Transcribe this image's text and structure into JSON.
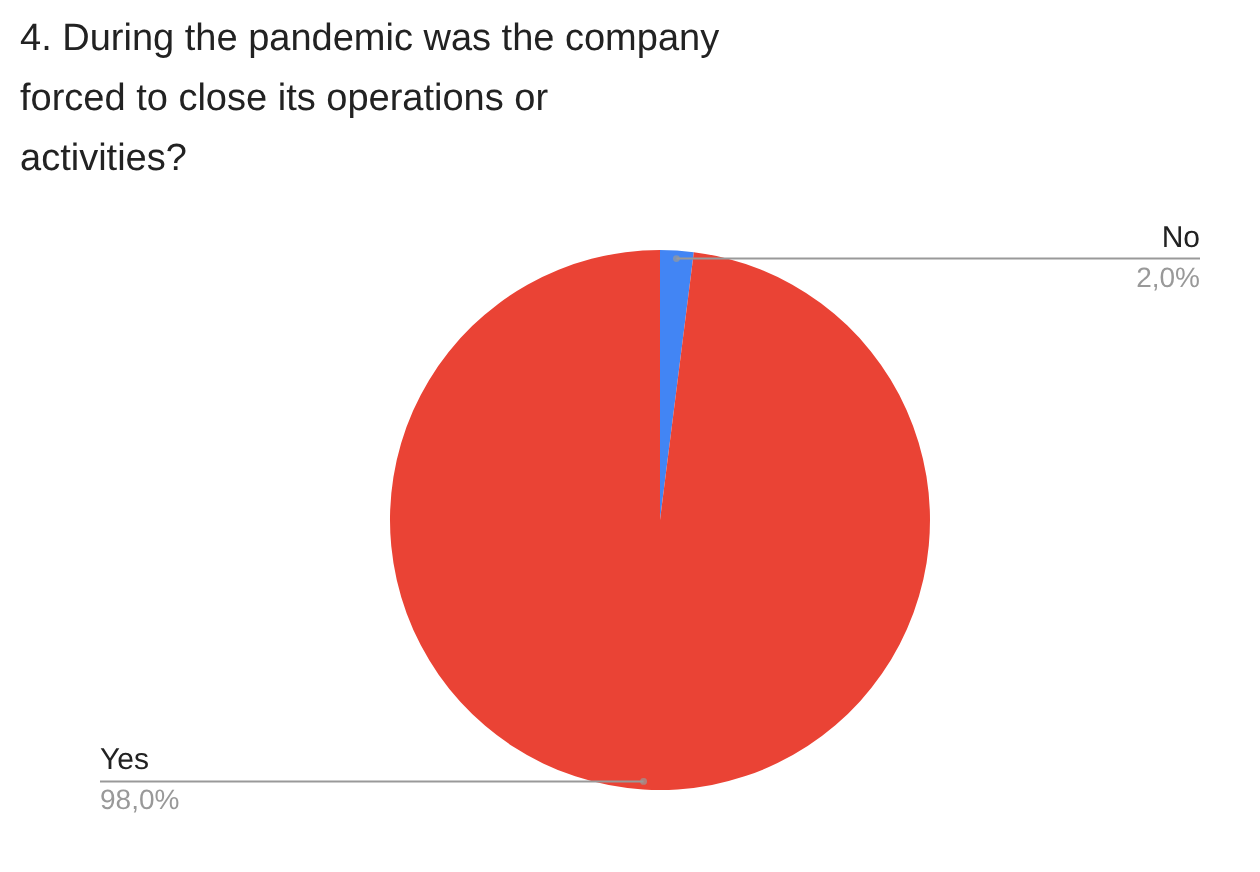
{
  "chart_data": {
    "type": "pie",
    "title": "4. During the pandemic was the company forced to close its operations or activities?",
    "categories": [
      "No",
      "Yes"
    ],
    "values": [
      2,
      98
    ],
    "colors": [
      "#4285f4",
      "#ea4335"
    ],
    "value_labels": [
      "2,0%",
      "98,0%"
    ],
    "legend": false
  }
}
